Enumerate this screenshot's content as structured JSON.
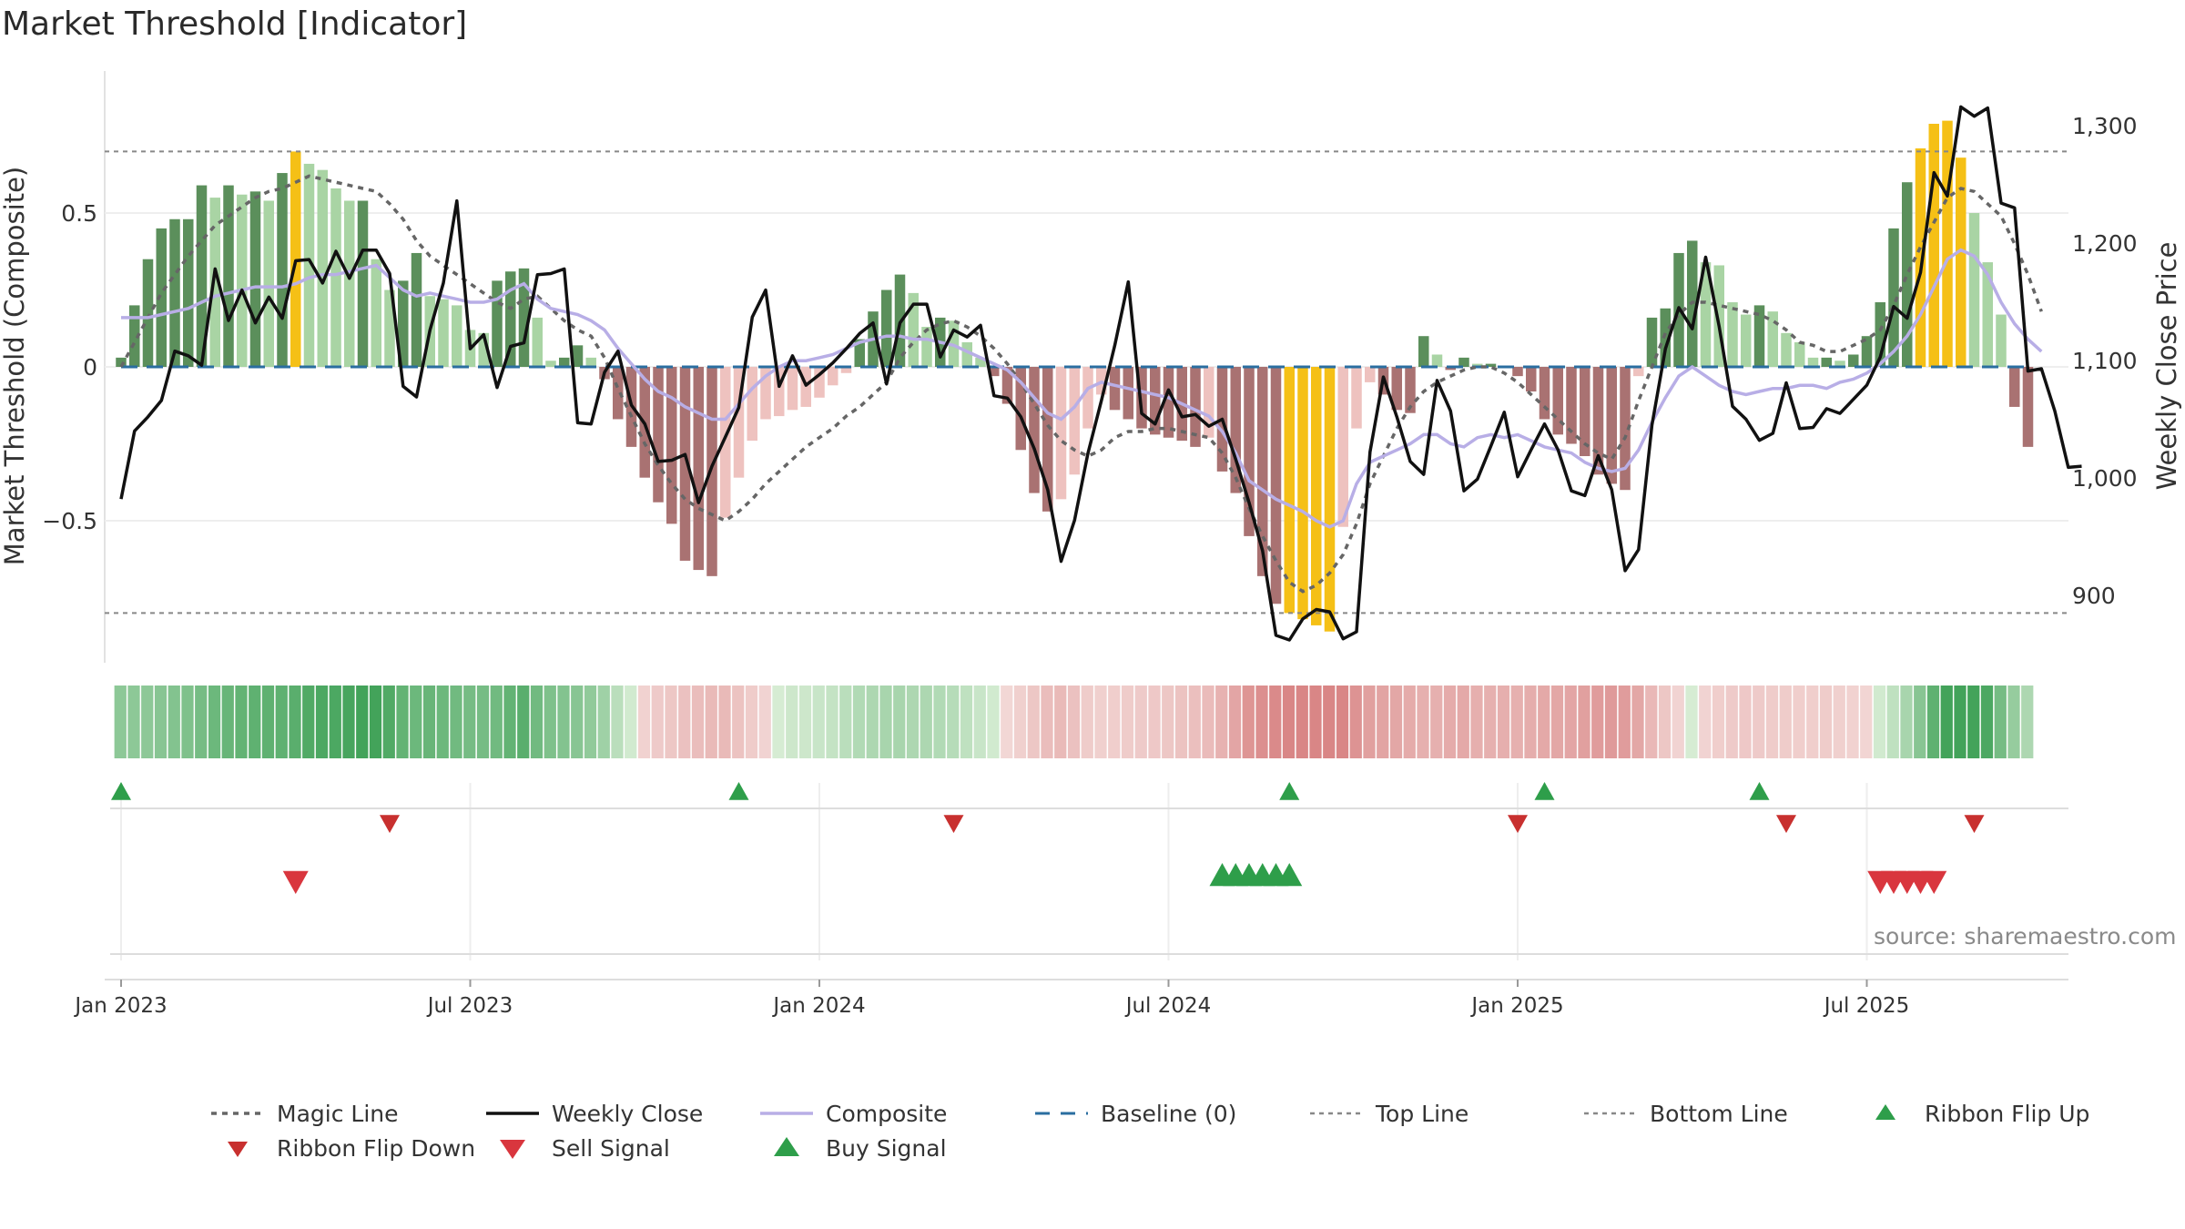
{
  "title": "Market Threshold [Indicator]",
  "source": "source: sharemaestro.com",
  "chart_data": {
    "type": "bar",
    "title": "Market Threshold [Indicator]",
    "ylabel": "Market Threshold (Composite)",
    "y2label": "Weekly Close Price",
    "ylim": [
      -0.95,
      0.95
    ],
    "y2lim": [
      820,
      1320
    ],
    "y_ticks": [
      {
        "v": 0.5,
        "label": "0.5"
      },
      {
        "v": 0,
        "label": "0"
      },
      {
        "v": -0.5,
        "label": "−0.5"
      }
    ],
    "y2_ticks": [
      {
        "v": 1300,
        "label": "1,300"
      },
      {
        "v": 1200,
        "label": "1,200"
      },
      {
        "v": 1100,
        "label": "1,100"
      },
      {
        "v": 1000,
        "label": "1,000"
      },
      {
        "v": 900,
        "label": "900"
      }
    ],
    "top_line": 0.7,
    "bottom_line": -0.8,
    "x_ticks": [
      {
        "i": 0,
        "label": "Jan 2023"
      },
      {
        "i": 26,
        "label": "Jul 2023"
      },
      {
        "i": 52,
        "label": "Jan 2024"
      },
      {
        "i": 78,
        "label": "Jul 2024"
      },
      {
        "i": 104,
        "label": "Jan 2025"
      },
      {
        "i": 130,
        "label": "Jul 2025"
      }
    ],
    "histogram": [
      0.03,
      0.2,
      0.35,
      0.45,
      0.48,
      0.48,
      0.59,
      0.55,
      0.59,
      0.56,
      0.57,
      0.54,
      0.63,
      0.7,
      0.66,
      0.64,
      0.58,
      0.54,
      0.54,
      0.35,
      0.25,
      0.28,
      0.37,
      0.23,
      0.22,
      0.2,
      0.12,
      0.11,
      0.28,
      0.31,
      0.32,
      0.16,
      0.02,
      0.03,
      0.07,
      0.03,
      -0.04,
      -0.17,
      -0.26,
      -0.36,
      -0.44,
      -0.51,
      -0.63,
      -0.66,
      -0.68,
      -0.49,
      -0.36,
      -0.24,
      -0.17,
      -0.16,
      -0.14,
      -0.13,
      -0.1,
      -0.06,
      -0.02,
      0.09,
      0.18,
      0.25,
      0.3,
      0.24,
      0.13,
      0.16,
      0.15,
      0.08,
      0.03,
      -0.03,
      -0.12,
      -0.27,
      -0.41,
      -0.47,
      -0.43,
      -0.35,
      -0.2,
      -0.09,
      -0.14,
      -0.17,
      -0.2,
      -0.22,
      -0.23,
      -0.24,
      -0.26,
      -0.23,
      -0.34,
      -0.41,
      -0.55,
      -0.68,
      -0.77,
      -0.8,
      -0.82,
      -0.84,
      -0.86,
      -0.52,
      -0.2,
      -0.05,
      -0.09,
      -0.14,
      -0.15,
      0.1,
      0.04,
      -0.01,
      0.03,
      0.01,
      0.01,
      0.0,
      -0.03,
      -0.08,
      -0.17,
      -0.22,
      -0.25,
      -0.29,
      -0.35,
      -0.38,
      -0.4,
      -0.03,
      0.16,
      0.19,
      0.37,
      0.41,
      0.34,
      0.33,
      0.21,
      0.17,
      0.2,
      0.18,
      0.11,
      0.08,
      0.03,
      0.03,
      0.02,
      0.04,
      0.1,
      0.21,
      0.45,
      0.6,
      0.71,
      0.79,
      0.8,
      0.68,
      0.5,
      0.34,
      0.17,
      -0.13,
      -0.26
    ],
    "histogram_color_rule": "dark green: rising above 0; light green: falling above 0; dark brown: falling below 0; light pink: rising below 0; gold: beyond top/bottom line",
    "composite": [
      0.16,
      0.16,
      0.16,
      0.17,
      0.18,
      0.19,
      0.21,
      0.23,
      0.24,
      0.25,
      0.26,
      0.26,
      0.26,
      0.27,
      0.29,
      0.3,
      0.3,
      0.31,
      0.32,
      0.33,
      0.29,
      0.25,
      0.23,
      0.24,
      0.23,
      0.22,
      0.21,
      0.21,
      0.22,
      0.25,
      0.27,
      0.22,
      0.19,
      0.18,
      0.17,
      0.15,
      0.12,
      0.06,
      0.01,
      -0.04,
      -0.08,
      -0.1,
      -0.13,
      -0.15,
      -0.17,
      -0.17,
      -0.12,
      -0.07,
      -0.03,
      0.0,
      0.02,
      0.02,
      0.03,
      0.04,
      0.06,
      0.08,
      0.09,
      0.1,
      0.1,
      0.09,
      0.09,
      0.08,
      0.07,
      0.05,
      0.03,
      0.01,
      -0.01,
      -0.05,
      -0.1,
      -0.15,
      -0.17,
      -0.13,
      -0.07,
      -0.05,
      -0.06,
      -0.07,
      -0.08,
      -0.09,
      -0.1,
      -0.12,
      -0.14,
      -0.16,
      -0.21,
      -0.28,
      -0.37,
      -0.4,
      -0.43,
      -0.45,
      -0.47,
      -0.5,
      -0.52,
      -0.5,
      -0.38,
      -0.31,
      -0.29,
      -0.27,
      -0.25,
      -0.22,
      -0.22,
      -0.25,
      -0.26,
      -0.23,
      -0.22,
      -0.23,
      -0.22,
      -0.24,
      -0.26,
      -0.27,
      -0.28,
      -0.31,
      -0.33,
      -0.34,
      -0.33,
      -0.27,
      -0.18,
      -0.1,
      -0.03,
      0.0,
      -0.03,
      -0.06,
      -0.08,
      -0.09,
      -0.08,
      -0.07,
      -0.07,
      -0.06,
      -0.06,
      -0.07,
      -0.05,
      -0.04,
      -0.02,
      0.01,
      0.05,
      0.1,
      0.17,
      0.26,
      0.35,
      0.38,
      0.36,
      0.3,
      0.21,
      0.14,
      0.09,
      0.05
    ],
    "magic_line": [
      0.0,
      0.08,
      0.16,
      0.24,
      0.3,
      0.36,
      0.41,
      0.46,
      0.49,
      0.52,
      0.55,
      0.57,
      0.58,
      0.6,
      0.62,
      0.61,
      0.6,
      0.59,
      0.58,
      0.57,
      0.53,
      0.48,
      0.41,
      0.36,
      0.33,
      0.3,
      0.27,
      0.24,
      0.21,
      0.19,
      0.22,
      0.23,
      0.19,
      0.15,
      0.12,
      0.1,
      0.03,
      -0.07,
      -0.16,
      -0.25,
      -0.32,
      -0.38,
      -0.43,
      -0.46,
      -0.48,
      -0.5,
      -0.47,
      -0.43,
      -0.38,
      -0.34,
      -0.3,
      -0.26,
      -0.23,
      -0.2,
      -0.16,
      -0.13,
      -0.09,
      -0.05,
      0.03,
      0.08,
      0.12,
      0.14,
      0.15,
      0.13,
      0.1,
      0.06,
      0.01,
      -0.05,
      -0.12,
      -0.19,
      -0.24,
      -0.27,
      -0.29,
      -0.27,
      -0.23,
      -0.21,
      -0.21,
      -0.2,
      -0.2,
      -0.21,
      -0.22,
      -0.23,
      -0.28,
      -0.36,
      -0.46,
      -0.55,
      -0.63,
      -0.7,
      -0.73,
      -0.71,
      -0.67,
      -0.61,
      -0.51,
      -0.38,
      -0.29,
      -0.2,
      -0.13,
      -0.08,
      -0.05,
      -0.03,
      -0.01,
      0.0,
      0.0,
      -0.02,
      -0.05,
      -0.09,
      -0.13,
      -0.17,
      -0.21,
      -0.25,
      -0.28,
      -0.3,
      -0.23,
      -0.11,
      0.0,
      0.11,
      0.17,
      0.21,
      0.21,
      0.2,
      0.19,
      0.18,
      0.17,
      0.15,
      0.12,
      0.08,
      0.07,
      0.05,
      0.05,
      0.07,
      0.09,
      0.12,
      0.2,
      0.3,
      0.39,
      0.47,
      0.55,
      0.58,
      0.57,
      0.53,
      0.49,
      0.4,
      0.3,
      0.18
    ],
    "weekly_close": [
      982,
      1040,
      1052,
      1066,
      1108,
      1104,
      1096,
      1178,
      1134,
      1160,
      1132,
      1154,
      1136,
      1185,
      1186,
      1166,
      1193,
      1170,
      1194,
      1194,
      1174,
      1078,
      1069,
      1126,
      1166,
      1236,
      1110,
      1122,
      1077,
      1112,
      1115,
      1173,
      1174,
      1178,
      1047,
      1046,
      1090,
      1108,
      1062,
      1046,
      1014,
      1015,
      1020,
      979,
      1010,
      1035,
      1060,
      1137,
      1160,
      1078,
      1104,
      1079,
      1088,
      1098,
      1110,
      1123,
      1132,
      1080,
      1132,
      1148,
      1148,
      1103,
      1126,
      1120,
      1130,
      1070,
      1068,
      1052,
      1025,
      990,
      929,
      964,
      1021,
      1066,
      1113,
      1167,
      1055,
      1046,
      1075,
      1052,
      1054,
      1044,
      1050,
      1016,
      979,
      938,
      866,
      862,
      880,
      888,
      886,
      863,
      869,
      1022,
      1086,
      1052,
      1014,
      1003,
      1083,
      1057,
      989,
      999,
      1027,
      1056,
      1001,
      1024,
      1046,
      1024,
      989,
      985,
      1019,
      990,
      921,
      939,
      1045,
      1110,
      1145,
      1127,
      1188,
      1129,
      1061,
      1050,
      1032,
      1038,
      1081,
      1042,
      1043,
      1059,
      1055,
      1067,
      1079,
      1103,
      1146,
      1136,
      1175,
      1260,
      1240,
      1316,
      1308,
      1315,
      1234,
      1230,
      1091,
      1093,
      1057,
      1009,
      1010
    ]
  },
  "strip": {
    "label": "Ribbon",
    "colors_by_week": "green tones when above baseline, red tones when below"
  },
  "signals": {
    "ribbon_flip_up": [
      0,
      46,
      87,
      106,
      122
    ],
    "ribbon_flip_down": [
      20,
      62,
      104,
      124,
      138
    ],
    "sell": [
      13,
      131,
      132,
      133,
      134,
      135
    ],
    "buy": [
      82,
      83,
      84,
      85,
      86,
      87
    ]
  },
  "legend": [
    {
      "key": "magic",
      "label": "Magic Line"
    },
    {
      "key": "close",
      "label": "Weekly Close"
    },
    {
      "key": "composite",
      "label": "Composite"
    },
    {
      "key": "baseline",
      "label": "Baseline (0)"
    },
    {
      "key": "top",
      "label": "Top Line"
    },
    {
      "key": "bottom",
      "label": "Bottom Line"
    },
    {
      "key": "flipup",
      "label": "Ribbon Flip Up"
    },
    {
      "key": "flipdown",
      "label": "Ribbon Flip Down"
    },
    {
      "key": "sell",
      "label": "Sell Signal"
    },
    {
      "key": "buy",
      "label": "Buy Signal"
    }
  ],
  "colors": {
    "pos_rising": "#5b8f5b",
    "pos_falling": "#a9d4a4",
    "neg_falling": "#a97272",
    "neg_rising": "#eec2bf",
    "extreme": "#f5c016",
    "close": "#111111",
    "composite": "#b8aee6",
    "magic": "#666666",
    "baseline": "#2a6ea0",
    "threshold": "#888888",
    "buy": "#2e9e4a",
    "sell": "#d9363e",
    "flipup": "#2e9e4a",
    "flipdown": "#c8302f"
  }
}
